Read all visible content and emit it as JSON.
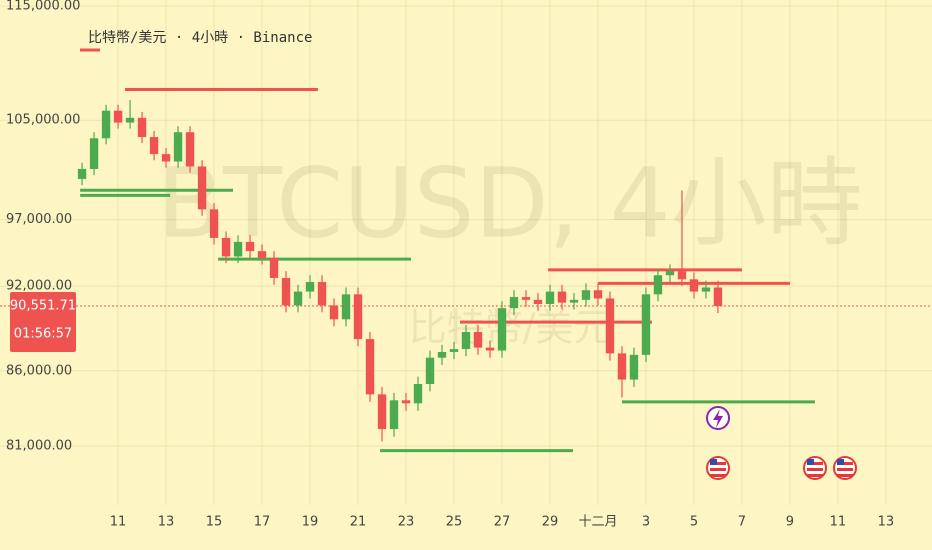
{
  "chart_data": {
    "type": "candlestick",
    "title": "比特幣/美元 · 4小時 · Binance",
    "watermark": "BTCUSD, 4小時",
    "watermark_subtitle": "比特幣/美元",
    "up_color": "#4caa4f",
    "down_color": "#ef5350",
    "log_scale": true,
    "grid": true,
    "x": [
      9.5,
      10,
      10.5,
      11,
      11.5,
      12,
      12.5,
      13,
      13.5,
      14,
      14.5,
      15,
      15.5,
      16,
      16.5,
      17,
      17.5,
      18,
      18.5,
      19,
      19.5,
      20,
      20.5,
      21,
      21.5,
      22,
      22.5,
      23,
      23.5,
      24,
      24.5,
      25,
      25.5,
      26,
      26.5,
      27,
      27.5,
      28,
      28.5,
      29,
      29.5,
      30,
      30.5,
      31,
      31.5,
      32,
      32.5,
      33,
      33.5,
      34,
      34.5,
      35,
      35.5,
      36
    ],
    "open": [
      100200,
      101000,
      103500,
      105800,
      104800,
      105200,
      103600,
      102200,
      101600,
      104000,
      101200,
      97800,
      95600,
      94200,
      95300,
      94600,
      94100,
      92600,
      90600,
      91600,
      92300,
      90600,
      89600,
      91400,
      88200,
      84400,
      82100,
      84000,
      83800,
      85100,
      86900,
      87300,
      87500,
      88700,
      87600,
      87400,
      90400,
      91200,
      91000,
      90700,
      91600,
      90800,
      91000,
      91700,
      91100,
      87200,
      85400,
      87100,
      91400,
      92800,
      93100,
      92500,
      91600,
      91900
    ],
    "high": [
      101500,
      104000,
      106300,
      106300,
      106700,
      105700,
      104100,
      102700,
      104500,
      104500,
      101700,
      98300,
      96100,
      95800,
      95800,
      95100,
      94600,
      93100,
      92100,
      92800,
      92800,
      91100,
      91900,
      91900,
      88700,
      84900,
      84500,
      84500,
      85600,
      87400,
      87800,
      88000,
      89200,
      89200,
      88100,
      90900,
      91700,
      91700,
      91500,
      92100,
      92100,
      91500,
      92200,
      92200,
      91600,
      87700,
      87600,
      91900,
      93300,
      93600,
      99300,
      93000,
      92400,
      92400
    ],
    "low": [
      99700,
      100500,
      103000,
      104300,
      104300,
      103100,
      101700,
      101100,
      101100,
      100700,
      97300,
      95100,
      93700,
      93700,
      94100,
      93600,
      92100,
      90100,
      90100,
      91100,
      90100,
      89100,
      89100,
      87700,
      83900,
      81300,
      81600,
      83300,
      83300,
      84600,
      86400,
      86800,
      87000,
      87100,
      86900,
      86900,
      89900,
      90500,
      90200,
      90200,
      90300,
      90300,
      90500,
      90600,
      86700,
      84200,
      84900,
      86600,
      90900,
      92300,
      92000,
      91100,
      91100,
      90052
    ],
    "close": [
      101000,
      103500,
      105800,
      104800,
      105200,
      103600,
      102200,
      101600,
      104000,
      101200,
      97800,
      95600,
      94200,
      95300,
      94600,
      94100,
      92600,
      90600,
      91600,
      92300,
      90600,
      89600,
      91400,
      88200,
      84400,
      82100,
      84000,
      83800,
      85100,
      86900,
      87300,
      87500,
      88700,
      87600,
      87400,
      90400,
      91200,
      91000,
      90700,
      91600,
      90800,
      91000,
      91700,
      91100,
      87200,
      85400,
      87100,
      91400,
      92800,
      93100,
      92500,
      91600,
      91900,
      90552
    ],
    "last_price": {
      "value": 90551.71,
      "label": "90,551.71"
    },
    "countdown": "01:56:57",
    "levels": [
      {
        "value": 107600,
        "x": [
          11.29,
          19.33
        ],
        "color": "#ef5350"
      },
      {
        "value": 99300,
        "x": [
          9.42,
          15.79
        ],
        "color": "#4caa4f"
      },
      {
        "value": 98900,
        "x": [
          9.42,
          13.17
        ],
        "color": "#4caa4f"
      },
      {
        "value": 94000,
        "x": [
          15.17,
          23.21
        ],
        "color": "#4caa4f"
      },
      {
        "value": 93200,
        "x": [
          28.92,
          37.0
        ],
        "color": "#ef5350"
      },
      {
        "value": 92200,
        "x": [
          31.0,
          39.0
        ],
        "color": "#ef5350"
      },
      {
        "value": 89400,
        "x": [
          25.25,
          33.25
        ],
        "color": "#ef5350"
      },
      {
        "value": 83900,
        "x": [
          32.0,
          40.04
        ],
        "color": "#4caa4f"
      },
      {
        "value": 80700,
        "x": [
          21.92,
          29.96
        ],
        "color": "#4caa4f"
      }
    ],
    "xlim": [
      6.08,
      44.92
    ],
    "ylim": [
      77280,
      115550
    ],
    "xticks": [
      11,
      13,
      15,
      17,
      19,
      21,
      23,
      25,
      27,
      29,
      {
        "value": 31,
        "label": "十二月"
      },
      {
        "value": 33,
        "label": "3"
      },
      {
        "value": 35,
        "label": "5"
      },
      {
        "value": 37,
        "label": "7"
      },
      {
        "value": 39,
        "label": "9"
      },
      {
        "value": 41,
        "label": "11"
      },
      {
        "value": 43,
        "label": "13"
      }
    ],
    "yticks": [
      {
        "value": 81000,
        "label": "81,000.00"
      },
      {
        "value": 86000,
        "label": "86,000.00"
      },
      {
        "value": 92000,
        "label": "92,000.00"
      },
      {
        "value": 97000,
        "label": "97,000.00"
      },
      {
        "value": 105000,
        "label": "105,000.00"
      },
      {
        "value": 115000,
        "label": "115,000.00"
      }
    ]
  }
}
